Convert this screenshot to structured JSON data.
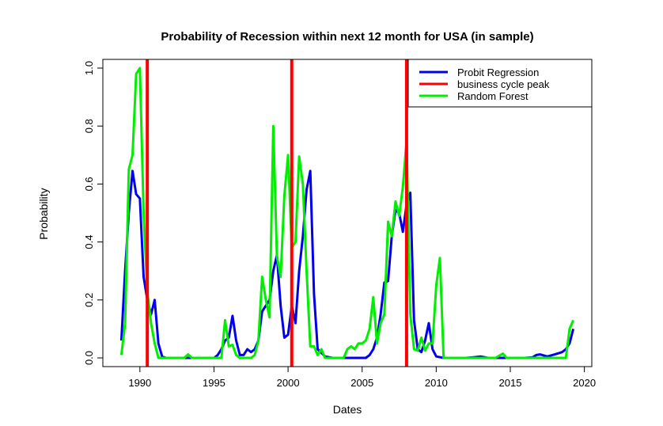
{
  "chart_data": {
    "type": "line",
    "title": "Probability of Recession within next 12 month for USA (in sample)",
    "xlabel": "Dates",
    "ylabel": "Probability",
    "xlim": [
      1987.5,
      2020.5
    ],
    "ylim": [
      -0.03,
      1.03
    ],
    "xticks": [
      "1990",
      "1995",
      "2000",
      "2005",
      "2010",
      "2015",
      "2020"
    ],
    "yticks": [
      "0.0",
      "0.2",
      "0.4",
      "0.6",
      "0.8",
      "1.0"
    ],
    "grid": false,
    "legend_position": "top-right",
    "business_cycle_peaks": [
      1990.5,
      2000.25,
      2008.0
    ],
    "series": [
      {
        "name": "Probit Regression",
        "color": "#0000ee",
        "x": [
          1988.75,
          1989.0,
          1989.25,
          1989.5,
          1989.75,
          1990.0,
          1990.25,
          1990.5,
          1990.75,
          1991.0,
          1991.25,
          1991.5,
          1991.75,
          1992.0,
          1992.5,
          1993.0,
          1993.5,
          1994.0,
          1994.5,
          1995.0,
          1995.25,
          1995.5,
          1995.75,
          1996.0,
          1996.25,
          1996.5,
          1996.75,
          1997.0,
          1997.25,
          1997.5,
          1997.75,
          1998.0,
          1998.25,
          1998.5,
          1998.75,
          1999.0,
          1999.25,
          1999.5,
          1999.75,
          2000.0,
          2000.25,
          2000.5,
          2000.75,
          2001.0,
          2001.25,
          2001.5,
          2001.75,
          2002.0,
          2002.5,
          2003.0,
          2003.5,
          2004.0,
          2004.5,
          2005.0,
          2005.25,
          2005.5,
          2005.75,
          2006.0,
          2006.25,
          2006.5,
          2006.75,
          2007.0,
          2007.25,
          2007.5,
          2007.75,
          2008.0,
          2008.25,
          2008.5,
          2008.75,
          2009.0,
          2009.25,
          2009.5,
          2009.75,
          2010.0,
          2010.5,
          2011.0,
          2011.5,
          2012.0,
          2012.5,
          2013.0,
          2013.5,
          2014.0,
          2014.5,
          2015.0,
          2015.5,
          2016.0,
          2016.5,
          2016.75,
          2017.0,
          2017.5,
          2018.0,
          2018.5,
          2018.75,
          2019.0,
          2019.25
        ],
        "values": [
          0.06,
          0.3,
          0.5,
          0.645,
          0.565,
          0.55,
          0.28,
          0.2,
          0.15,
          0.2,
          0.05,
          0.005,
          0.0,
          0.0,
          0.0,
          0.0,
          0.0,
          0.0,
          0.0,
          0.0,
          0.01,
          0.03,
          0.06,
          0.07,
          0.145,
          0.06,
          0.01,
          0.01,
          0.03,
          0.02,
          0.03,
          0.06,
          0.16,
          0.18,
          0.2,
          0.3,
          0.355,
          0.18,
          0.07,
          0.08,
          0.18,
          0.12,
          0.3,
          0.42,
          0.58,
          0.645,
          0.22,
          0.03,
          0.005,
          0.0,
          0.0,
          0.0,
          0.0,
          0.0,
          0.0,
          0.01,
          0.03,
          0.07,
          0.15,
          0.26,
          0.265,
          0.42,
          0.51,
          0.5,
          0.435,
          0.53,
          0.57,
          0.13,
          0.03,
          0.02,
          0.06,
          0.12,
          0.03,
          0.005,
          0.0,
          0.0,
          0.0,
          0.0,
          0.002,
          0.005,
          0.0,
          0.0,
          0.0,
          0.0,
          0.0,
          0.0,
          0.002,
          0.01,
          0.012,
          0.005,
          0.012,
          0.02,
          0.03,
          0.05,
          0.1
        ]
      },
      {
        "name": "business cycle peak",
        "color": "#ff0000"
      },
      {
        "name": "Random Forest",
        "color": "#00ee00",
        "x": [
          1988.75,
          1989.0,
          1989.25,
          1989.5,
          1989.75,
          1990.0,
          1990.25,
          1990.5,
          1990.75,
          1991.0,
          1991.25,
          1991.5,
          1992.0,
          1992.5,
          1993.0,
          1993.25,
          1993.5,
          1994.0,
          1994.5,
          1995.0,
          1995.25,
          1995.5,
          1995.75,
          1996.0,
          1996.25,
          1996.5,
          1996.75,
          1997.0,
          1997.25,
          1997.5,
          1997.75,
          1998.0,
          1998.25,
          1998.5,
          1998.75,
          1999.0,
          1999.25,
          1999.5,
          1999.75,
          2000.0,
          2000.25,
          2000.5,
          2000.75,
          2001.0,
          2001.25,
          2001.5,
          2001.75,
          2002.0,
          2002.25,
          2002.5,
          2002.75,
          2003.0,
          2003.5,
          2003.75,
          2004.0,
          2004.25,
          2004.5,
          2004.75,
          2005.0,
          2005.25,
          2005.5,
          2005.75,
          2006.0,
          2006.25,
          2006.5,
          2006.75,
          2007.0,
          2007.25,
          2007.5,
          2007.75,
          2008.0,
          2008.25,
          2008.5,
          2008.75,
          2009.0,
          2009.25,
          2009.5,
          2009.75,
          2010.0,
          2010.25,
          2010.5,
          2010.75,
          2011.0,
          2012.0,
          2013.0,
          2014.0,
          2014.5,
          2014.75,
          2015.0,
          2016.0,
          2017.0,
          2018.0,
          2018.75,
          2019.0,
          2019.25
        ],
        "values": [
          0.01,
          0.12,
          0.65,
          0.7,
          0.98,
          1.0,
          0.5,
          0.23,
          0.12,
          0.05,
          0.0,
          0.0,
          0.0,
          0.0,
          0.0,
          0.012,
          0.0,
          0.0,
          0.0,
          0.0,
          0.0,
          0.0,
          0.13,
          0.04,
          0.045,
          0.01,
          0.0,
          0.0,
          0.0,
          0.0,
          0.01,
          0.06,
          0.28,
          0.2,
          0.14,
          0.8,
          0.35,
          0.28,
          0.56,
          0.7,
          0.38,
          0.4,
          0.695,
          0.6,
          0.3,
          0.04,
          0.04,
          0.01,
          0.03,
          0.0,
          0.0,
          0.0,
          0.0,
          0.0,
          0.03,
          0.04,
          0.03,
          0.05,
          0.05,
          0.06,
          0.1,
          0.21,
          0.05,
          0.12,
          0.15,
          0.47,
          0.42,
          0.54,
          0.49,
          0.59,
          0.75,
          0.15,
          0.03,
          0.025,
          0.07,
          0.025,
          0.05,
          0.05,
          0.25,
          0.345,
          0.0,
          0.0,
          0.0,
          0.0,
          0.0,
          0.0,
          0.015,
          0.0,
          0.0,
          0.0,
          0.0,
          0.0,
          0.0,
          0.1,
          0.13
        ]
      }
    ]
  }
}
